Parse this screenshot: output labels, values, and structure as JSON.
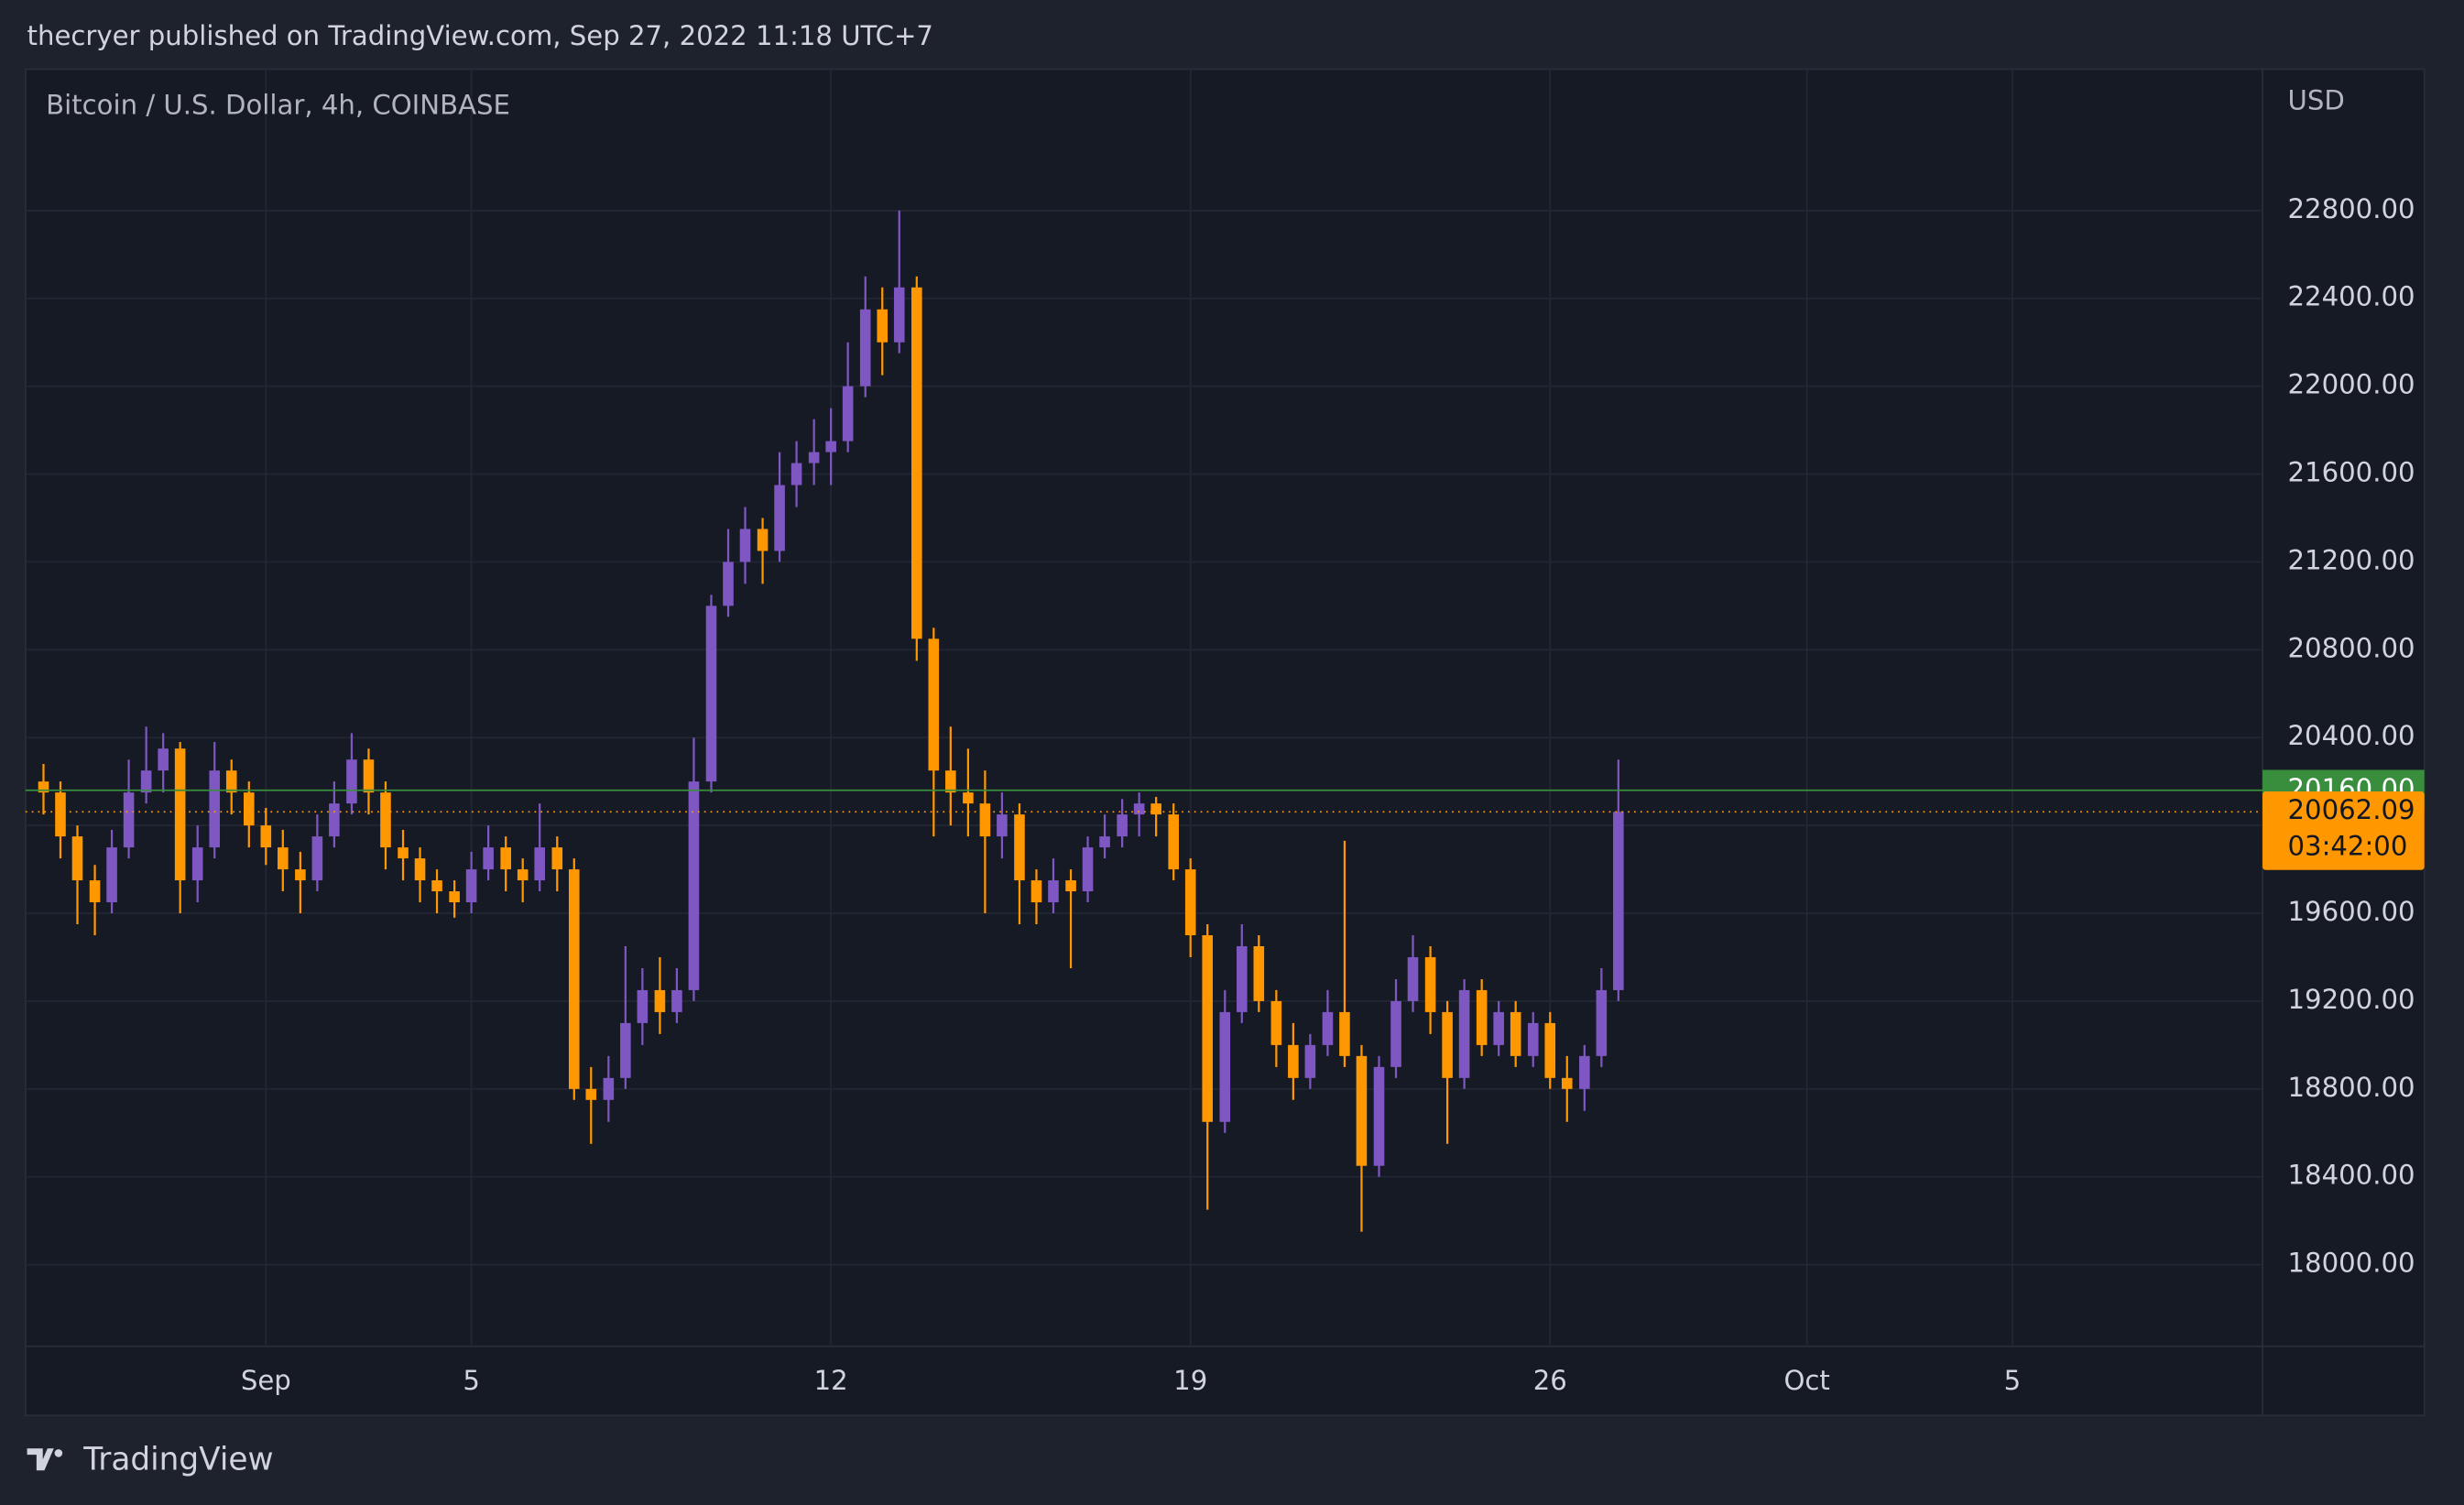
{
  "header": {
    "text": "thecryer published on TradingView.com, Sep 27, 2022 11:18 UTC+7"
  },
  "footer": {
    "brand": "TradingView"
  },
  "chart_data": {
    "type": "candlestick",
    "title": "Bitcoin / U.S. Dollar, 4h, COINBASE",
    "y_axis_label": "USD",
    "up_color": "#7e57c2",
    "down_color": "#ff9800",
    "grid": true,
    "xlim": [
      -4.68,
      38.87
    ],
    "xticks": [
      {
        "value": 0,
        "label": "Sep"
      },
      {
        "value": 4,
        "label": "5"
      },
      {
        "value": 11,
        "label": "12"
      },
      {
        "value": 18,
        "label": "19"
      },
      {
        "value": 25,
        "label": "26"
      },
      {
        "value": 30,
        "label": "Oct"
      },
      {
        "value": 34,
        "label": "5"
      }
    ],
    "ylim": [
      17628,
      23444
    ],
    "yticks": [
      {
        "value": 18000,
        "label": "18000.00"
      },
      {
        "value": 18400,
        "label": "18400.00"
      },
      {
        "value": 18800,
        "label": "18800.00"
      },
      {
        "value": 19200,
        "label": "19200.00"
      },
      {
        "value": 19600,
        "label": "19600.00"
      },
      {
        "value": 20000,
        "label": "20000.00"
      },
      {
        "value": 20400,
        "label": "20400.00"
      },
      {
        "value": 20800,
        "label": "20800.00"
      },
      {
        "value": 21200,
        "label": "21200.00"
      },
      {
        "value": 21600,
        "label": "21600.00"
      },
      {
        "value": 22000,
        "label": "22000.00"
      },
      {
        "value": 22400,
        "label": "22400.00"
      },
      {
        "value": 22800,
        "label": "22800.00"
      }
    ],
    "price_line": {
      "value": 20160,
      "label": "20160.00",
      "color": "#388e3c"
    },
    "last_price": {
      "value": 20062.09,
      "label": "20062.09",
      "countdown": "03:42:00",
      "color": "#ff9800"
    },
    "x": [
      -4.33,
      -4,
      -3.67,
      -3.33,
      -3,
      -2.67,
      -2.33,
      -2,
      -1.67,
      -1.33,
      -1,
      -0.67,
      -0.33,
      0,
      0.33,
      0.67,
      1,
      1.33,
      1.67,
      2,
      2.33,
      2.67,
      3,
      3.33,
      3.67,
      4,
      4.33,
      4.67,
      5,
      5.33,
      5.67,
      6,
      6.33,
      6.67,
      7,
      7.33,
      7.67,
      8,
      8.33,
      8.67,
      9,
      9.33,
      9.67,
      10,
      10.33,
      10.67,
      11,
      11.33,
      11.67,
      12,
      12.33,
      12.67,
      13,
      13.33,
      13.67,
      14,
      14.33,
      14.67,
      15,
      15.33,
      15.67,
      16,
      16.33,
      16.67,
      17,
      17.33,
      17.67,
      18,
      18.33,
      18.67,
      19,
      19.33,
      19.67,
      20,
      20.33,
      20.67,
      21,
      21.33,
      21.67,
      22,
      22.33,
      22.67,
      23,
      23.33,
      23.67,
      24,
      24.33,
      24.67,
      25,
      25.33,
      25.67,
      26,
      26.33
    ],
    "open": [
      20200,
      20150,
      19950,
      19750,
      19650,
      19900,
      20150,
      20250,
      20350,
      19750,
      19900,
      20250,
      20150,
      20000,
      19900,
      19800,
      19750,
      19950,
      20100,
      20300,
      20150,
      19900,
      19850,
      19750,
      19700,
      19650,
      19800,
      19900,
      19800,
      19750,
      19900,
      19800,
      18800,
      18750,
      18850,
      19100,
      19250,
      19150,
      19250,
      20200,
      21000,
      21200,
      21350,
      21250,
      21550,
      21650,
      21700,
      21750,
      22000,
      22350,
      22200,
      22450,
      20850,
      20250,
      20150,
      20100,
      19950,
      20050,
      19750,
      19650,
      19750,
      19700,
      19900,
      19950,
      20050,
      20100,
      20050,
      19800,
      19500,
      18650,
      19150,
      19450,
      19200,
      19000,
      18850,
      19000,
      19150,
      18950,
      18450,
      18900,
      19200,
      19400,
      19150,
      18850,
      19250,
      19000,
      19150,
      18950,
      19100,
      18850,
      18800,
      18950,
      19250
    ],
    "high": [
      20280,
      20200,
      20000,
      19820,
      19980,
      20300,
      20450,
      20420,
      20380,
      20000,
      20380,
      20300,
      20200,
      20080,
      19980,
      19880,
      20050,
      20200,
      20420,
      20350,
      20200,
      19980,
      19900,
      19800,
      19750,
      19880,
      20000,
      19950,
      19850,
      20100,
      19950,
      19850,
      18900,
      18950,
      19450,
      19350,
      19400,
      19350,
      20400,
      21050,
      21350,
      21450,
      21400,
      21700,
      21750,
      21850,
      21900,
      22200,
      22500,
      22450,
      22800,
      22500,
      20900,
      20450,
      20350,
      20250,
      20150,
      20100,
      19800,
      19850,
      19800,
      19950,
      20050,
      20120,
      20150,
      20130,
      20100,
      19850,
      19550,
      19250,
      19550,
      19500,
      19250,
      19100,
      19050,
      19250,
      19930,
      19000,
      18950,
      19300,
      19500,
      19450,
      19200,
      19300,
      19300,
      19200,
      19200,
      19150,
      19150,
      18950,
      19000,
      19350,
      20300
    ],
    "low": [
      20050,
      19850,
      19550,
      19500,
      19600,
      19850,
      20100,
      20150,
      19600,
      19650,
      19850,
      20050,
      19900,
      19820,
      19700,
      19600,
      19700,
      19900,
      20050,
      20050,
      19800,
      19750,
      19650,
      19600,
      19580,
      19600,
      19750,
      19700,
      19650,
      19700,
      19700,
      18750,
      18550,
      18650,
      18800,
      19000,
      19050,
      19100,
      19200,
      20150,
      20950,
      21100,
      21100,
      21200,
      21450,
      21550,
      21550,
      21700,
      21950,
      22050,
      22150,
      20750,
      19950,
      20000,
      19950,
      19600,
      19850,
      19550,
      19550,
      19600,
      19350,
      19650,
      19850,
      19900,
      19950,
      19950,
      19750,
      19400,
      18250,
      18600,
      19100,
      19150,
      18900,
      18750,
      18800,
      18950,
      18900,
      18150,
      18400,
      18850,
      19150,
      19050,
      18550,
      18800,
      18950,
      18950,
      18900,
      18900,
      18800,
      18650,
      18700,
      18900,
      19200
    ],
    "close": [
      20150,
      19950,
      19750,
      19650,
      19900,
      20150,
      20250,
      20350,
      19750,
      19900,
      20250,
      20150,
      20000,
      19900,
      19800,
      19750,
      19950,
      20100,
      20300,
      20150,
      19900,
      19850,
      19750,
      19700,
      19650,
      19800,
      19900,
      19800,
      19750,
      19900,
      19800,
      18800,
      18750,
      18850,
      19100,
      19250,
      19150,
      19250,
      20200,
      21000,
      21200,
      21350,
      21250,
      21550,
      21650,
      21700,
      21750,
      22000,
      22350,
      22200,
      22450,
      20850,
      20250,
      20150,
      20100,
      19950,
      20050,
      19750,
      19650,
      19750,
      19700,
      19900,
      19950,
      20050,
      20100,
      20050,
      19800,
      19500,
      18650,
      19150,
      19450,
      19200,
      19000,
      18850,
      19000,
      19150,
      18950,
      18450,
      18900,
      19200,
      19400,
      19150,
      18850,
      19250,
      19000,
      19150,
      18950,
      19100,
      18850,
      18800,
      18950,
      19250,
      20062.09
    ]
  }
}
